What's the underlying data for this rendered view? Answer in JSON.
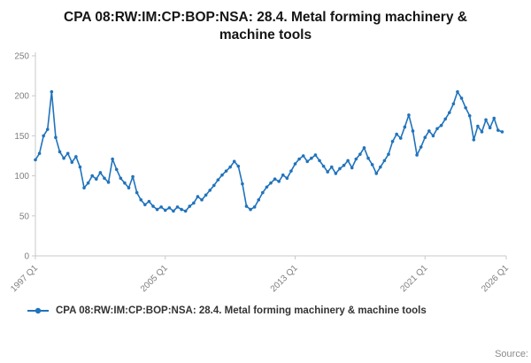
{
  "title": "CPA 08:RW:IM:CP:BOP:NSA: 28.4. Metal forming machinery & machine tools",
  "legend": {
    "label": "CPA 08:RW:IM:CP:BOP:NSA: 28.4. Metal forming machinery & machine tools"
  },
  "source_label": "Source:",
  "chart_data": {
    "type": "line",
    "title": "CPA 08:RW:IM:CP:BOP:NSA: 28.4. Metal forming machinery & machine tools",
    "xlabel": "",
    "ylabel": "",
    "x_start": "1997 Q1",
    "x_end": "2025 Q4",
    "x_axis_end": "2026 Q1",
    "frequency": "quarterly",
    "x_count": 117,
    "x_ticks": [
      {
        "label": "1997 Q1",
        "index": 0
      },
      {
        "label": "2005 Q1",
        "index": 32
      },
      {
        "label": "2013 Q1",
        "index": 64
      },
      {
        "label": "2021 Q1",
        "index": 96
      },
      {
        "label": "2026 Q1",
        "index": 116
      }
    ],
    "y_ticks": [
      0,
      50,
      100,
      150,
      200,
      250
    ],
    "ylim": [
      0,
      250
    ],
    "grid": false,
    "legend_position": "bottom-left",
    "line_color": "#2073bc",
    "marker": "circle",
    "values": [
      120,
      128,
      150,
      158,
      205,
      148,
      130,
      122,
      128,
      117,
      124,
      111,
      85,
      91,
      100,
      96,
      104,
      97,
      92,
      121,
      108,
      97,
      91,
      85,
      99,
      79,
      70,
      64,
      68,
      62,
      58,
      61,
      57,
      60,
      56,
      61,
      58,
      56,
      62,
      66,
      74,
      70,
      76,
      82,
      88,
      95,
      101,
      106,
      111,
      118,
      112,
      90,
      62,
      58,
      61,
      70,
      79,
      86,
      91,
      96,
      93,
      101,
      97,
      106,
      115,
      121,
      125,
      118,
      122,
      126,
      119,
      112,
      105,
      111,
      103,
      109,
      113,
      119,
      110,
      121,
      127,
      135,
      122,
      114,
      103,
      111,
      119,
      127,
      143,
      152,
      147,
      161,
      176,
      156,
      126,
      136,
      148,
      156,
      150,
      159,
      163,
      171,
      179,
      190,
      205,
      197,
      185,
      175,
      145,
      162,
      155,
      170,
      160,
      172,
      157,
      155
    ]
  }
}
